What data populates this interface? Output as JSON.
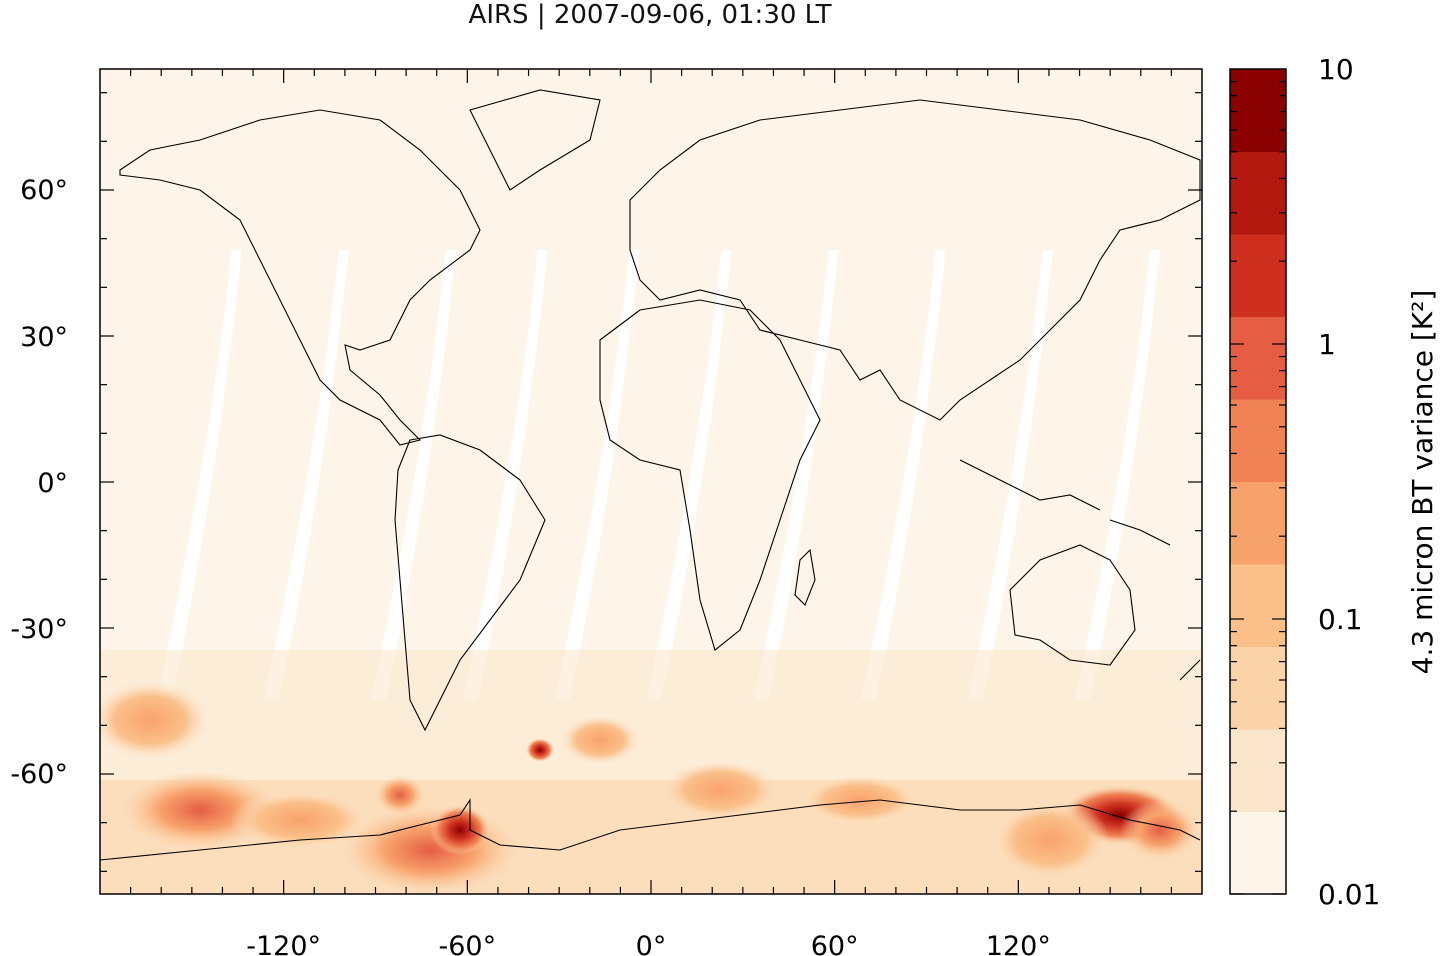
{
  "title": "AIRS | 2007-09-06, 01:30 LT",
  "x_ticks": [
    "-120°",
    "-60°",
    "0°",
    "60°",
    "120°"
  ],
  "x_tick_values": [
    -120,
    -60,
    0,
    60,
    120
  ],
  "y_ticks": [
    "60°",
    "30°",
    "0°",
    "-30°",
    "-60°"
  ],
  "y_tick_values": [
    60,
    30,
    0,
    -30,
    -60
  ],
  "colorbar": {
    "label": "4.3 micron BT variance [K²]",
    "tick_labels": [
      "10",
      "1",
      "0.1",
      "0.01"
    ],
    "tick_values": [
      10,
      1,
      0.1,
      0.01
    ],
    "colors": [
      "#fdf4ea",
      "#fbe5cb",
      "#fbd3a8",
      "#fbc08a",
      "#f8a26b",
      "#f08254",
      "#e55e44",
      "#ce2f1f",
      "#b3190f",
      "#8b0000"
    ]
  },
  "colors": {
    "land_bg": "#fdf5ea",
    "swath_gap": "#ffffff",
    "coast": "#000000"
  }
}
